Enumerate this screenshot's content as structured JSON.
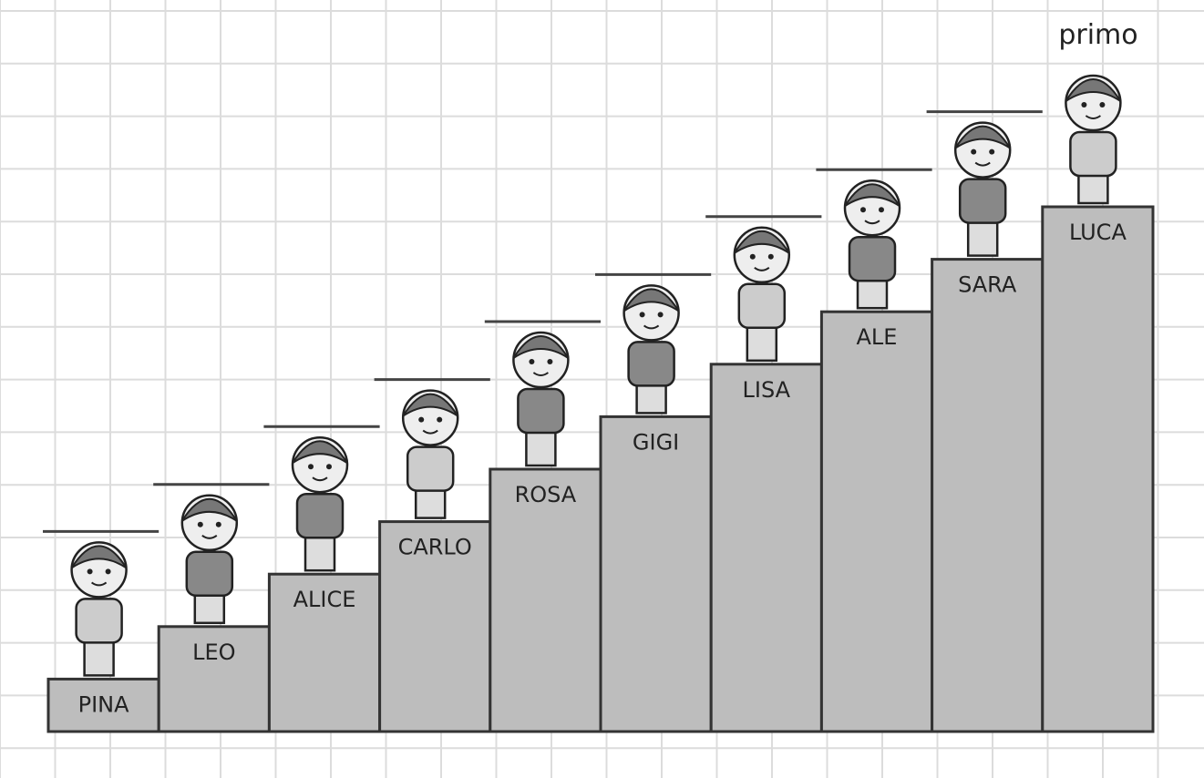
{
  "blocks": {
    "names": [
      "PINA",
      "LEO",
      "ALICE",
      "CARLO",
      "ROSA",
      "GIGI",
      "LISA",
      "ALE",
      "SARA",
      "LUCA"
    ]
  },
  "winner_label": "primo"
}
